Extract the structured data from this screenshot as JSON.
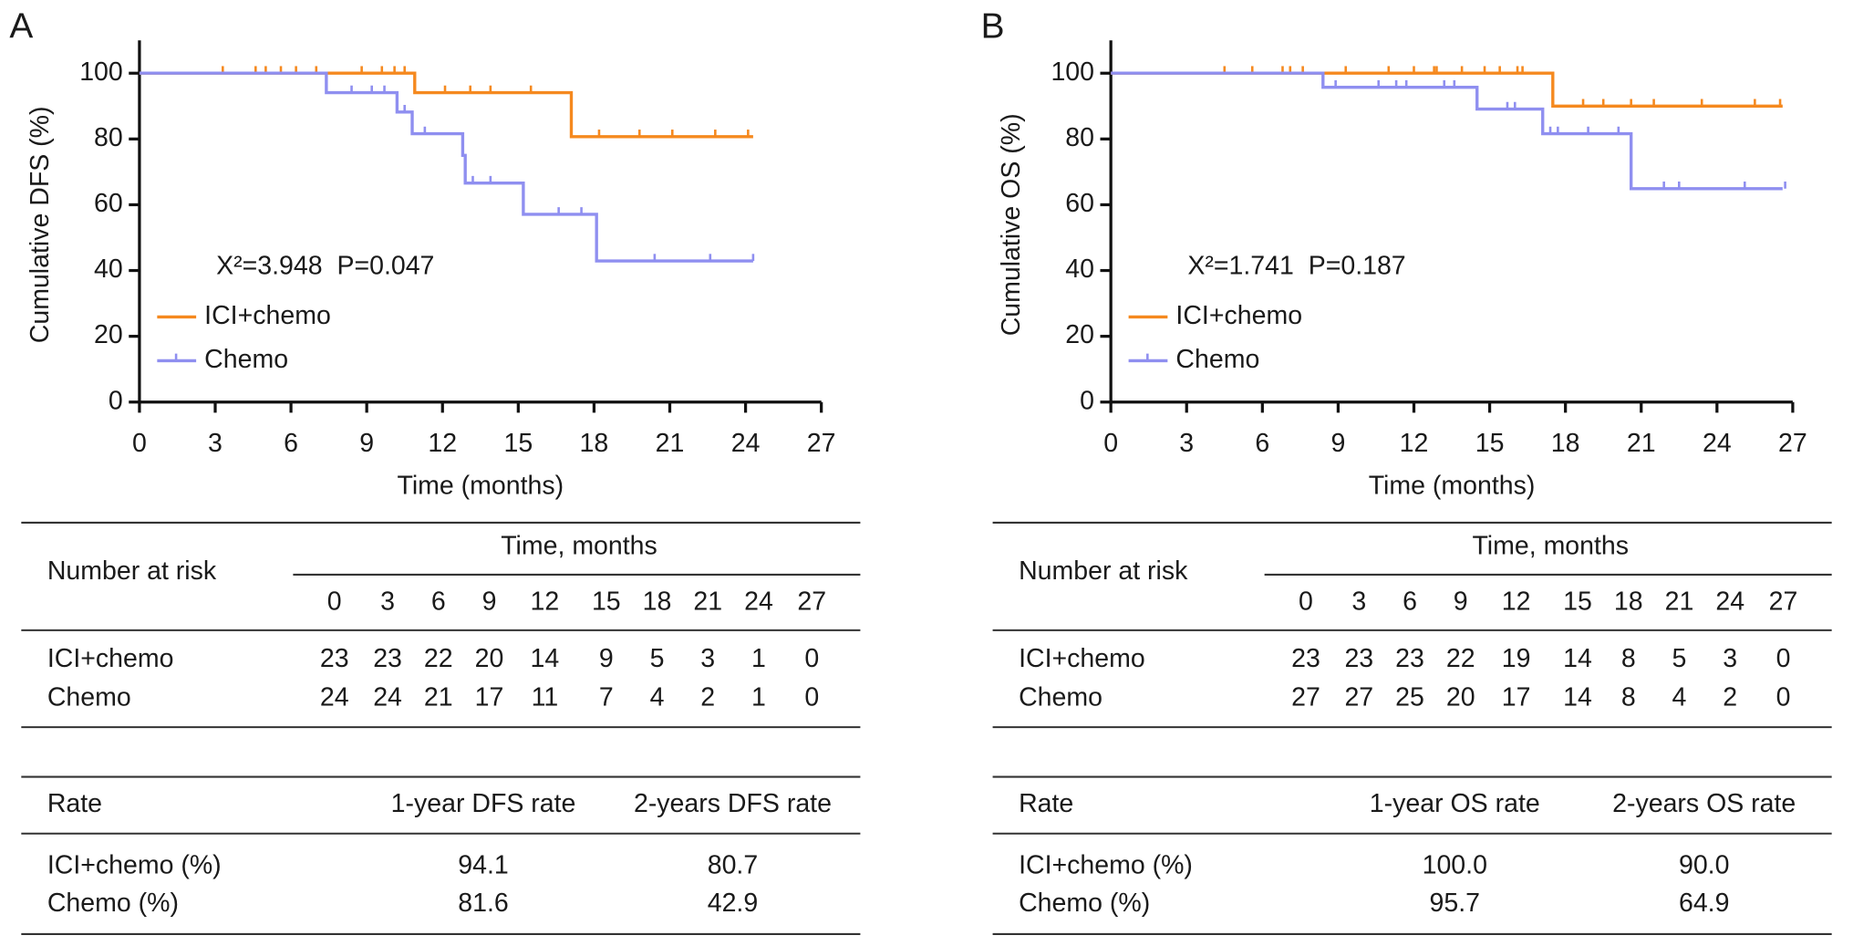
{
  "chart_data": [
    {
      "type": "step",
      "panel_label": "A",
      "x_label": "Time (months)",
      "y_label": "Cumulative DFS (%)",
      "annotation": "X²=3.948  P=0.047",
      "xlim": [
        0,
        27
      ],
      "ylim": [
        0,
        110
      ],
      "xticks": [
        0,
        3,
        6,
        9,
        12,
        15,
        18,
        21,
        24,
        27
      ],
      "yticks": [
        0,
        20,
        40,
        60,
        80,
        100
      ],
      "series": [
        {
          "name": "ICI+chemo",
          "color": "#f5891f",
          "x": [
            0,
            10.9,
            17.1,
            24.3
          ],
          "values": [
            100,
            94.1,
            80.7,
            80.7
          ],
          "censor_x": [
            3.3,
            4.6,
            5.0,
            5.6,
            6.2,
            7.0,
            8.8,
            9.6,
            10.1,
            10.5,
            12.1,
            13.1,
            13.9,
            15.5,
            18.2,
            19.8,
            21.1,
            22.8,
            24.1
          ],
          "censor_values": [
            100,
            100,
            100,
            100,
            100,
            100,
            100,
            100,
            100,
            100,
            94.1,
            94.1,
            94.1,
            94.1,
            80.7,
            80.7,
            80.7,
            80.7,
            80.7
          ]
        },
        {
          "name": "Chemo",
          "color": "#8f8ff0",
          "x": [
            0,
            7.4,
            10.2,
            10.8,
            12.8,
            12.9,
            15.2,
            18.1,
            24.3
          ],
          "values": [
            100,
            94.1,
            88.2,
            81.6,
            75.0,
            66.6,
            57.1,
            42.9,
            42.9
          ],
          "censor_x": [
            8.4,
            9.2,
            9.7,
            10.5,
            11.3,
            13.2,
            13.9,
            16.6,
            17.5,
            20.4,
            22.6,
            24.3
          ],
          "censor_values": [
            94.1,
            94.1,
            94.1,
            88.2,
            81.6,
            66.6,
            66.6,
            57.1,
            57.1,
            42.9,
            42.9,
            42.9
          ]
        }
      ]
    },
    {
      "type": "step",
      "panel_label": "B",
      "x_label": "Time (months)",
      "y_label": "Cumulative OS (%)",
      "annotation": "X²=1.741  P=0.187",
      "xlim": [
        0,
        27
      ],
      "ylim": [
        0,
        110
      ],
      "xticks": [
        0,
        3,
        6,
        9,
        12,
        15,
        18,
        21,
        24,
        27
      ],
      "yticks": [
        0,
        20,
        40,
        60,
        80,
        100
      ],
      "series": [
        {
          "name": "ICI+chemo",
          "color": "#f5891f",
          "x": [
            0,
            17.5,
            26.6
          ],
          "values": [
            100,
            90.0,
            90.0
          ],
          "censor_x": [
            4.5,
            5.6,
            6.8,
            7.1,
            7.6,
            9.3,
            11.0,
            12.0,
            12.8,
            12.9,
            13.9,
            14.8,
            15.4,
            16.1,
            16.3,
            18.7,
            19.5,
            20.6,
            21.5,
            23.4,
            25.5,
            26.5
          ],
          "censor_values": [
            100,
            100,
            100,
            100,
            100,
            100,
            100,
            100,
            100,
            100,
            100,
            100,
            100,
            100,
            100,
            90.0,
            90.0,
            90.0,
            90.0,
            90.0,
            90.0,
            90.0
          ]
        },
        {
          "name": "Chemo",
          "color": "#8f8ff0",
          "x": [
            0,
            8.4,
            14.5,
            17.1,
            20.6,
            26.6
          ],
          "values": [
            100,
            95.7,
            89.1,
            81.6,
            64.9,
            64.9
          ],
          "censor_x": [
            8.9,
            10.6,
            11.3,
            11.7,
            13.2,
            13.6,
            15.7,
            16.0,
            17.4,
            17.7,
            18.9,
            20.1,
            21.9,
            22.5,
            25.1,
            26.7
          ],
          "censor_values": [
            95.7,
            95.7,
            95.7,
            95.7,
            95.7,
            95.7,
            89.1,
            89.1,
            81.6,
            81.6,
            81.6,
            81.6,
            64.9,
            64.9,
            64.9,
            64.9
          ]
        }
      ]
    }
  ],
  "tables": [
    {
      "risk": {
        "title": "Number at risk",
        "time_header": "Time, months",
        "times": [
          0,
          3,
          6,
          9,
          12,
          15,
          18,
          21,
          24,
          27
        ],
        "rows": [
          {
            "name": "ICI+chemo",
            "values": [
              23,
              23,
              22,
              20,
              14,
              9,
              5,
              3,
              1,
              0
            ]
          },
          {
            "name": "Chemo",
            "values": [
              24,
              24,
              21,
              17,
              11,
              7,
              4,
              2,
              1,
              0
            ]
          }
        ]
      },
      "rate": {
        "header": [
          "Rate",
          "1-year DFS rate",
          "2-years DFS rate"
        ],
        "rows": [
          [
            "ICI+chemo (%)",
            "94.1",
            "80.7"
          ],
          [
            "Chemo (%)",
            "81.6",
            "42.9"
          ]
        ]
      }
    },
    {
      "risk": {
        "title": "Number at risk",
        "time_header": "Time, months",
        "times": [
          0,
          3,
          6,
          9,
          12,
          15,
          18,
          21,
          24,
          27
        ],
        "rows": [
          {
            "name": "ICI+chemo",
            "values": [
              23,
              23,
              23,
              22,
              19,
              14,
              8,
              5,
              3,
              0
            ]
          },
          {
            "name": "Chemo",
            "values": [
              27,
              27,
              25,
              20,
              17,
              14,
              8,
              4,
              2,
              0
            ]
          }
        ]
      },
      "rate": {
        "header": [
          "Rate",
          "1-year OS rate",
          "2-years OS rate"
        ],
        "rows": [
          [
            "ICI+chemo (%)",
            "100.0",
            "90.0"
          ],
          [
            "Chemo (%)",
            "95.7",
            "64.9"
          ]
        ]
      }
    }
  ]
}
